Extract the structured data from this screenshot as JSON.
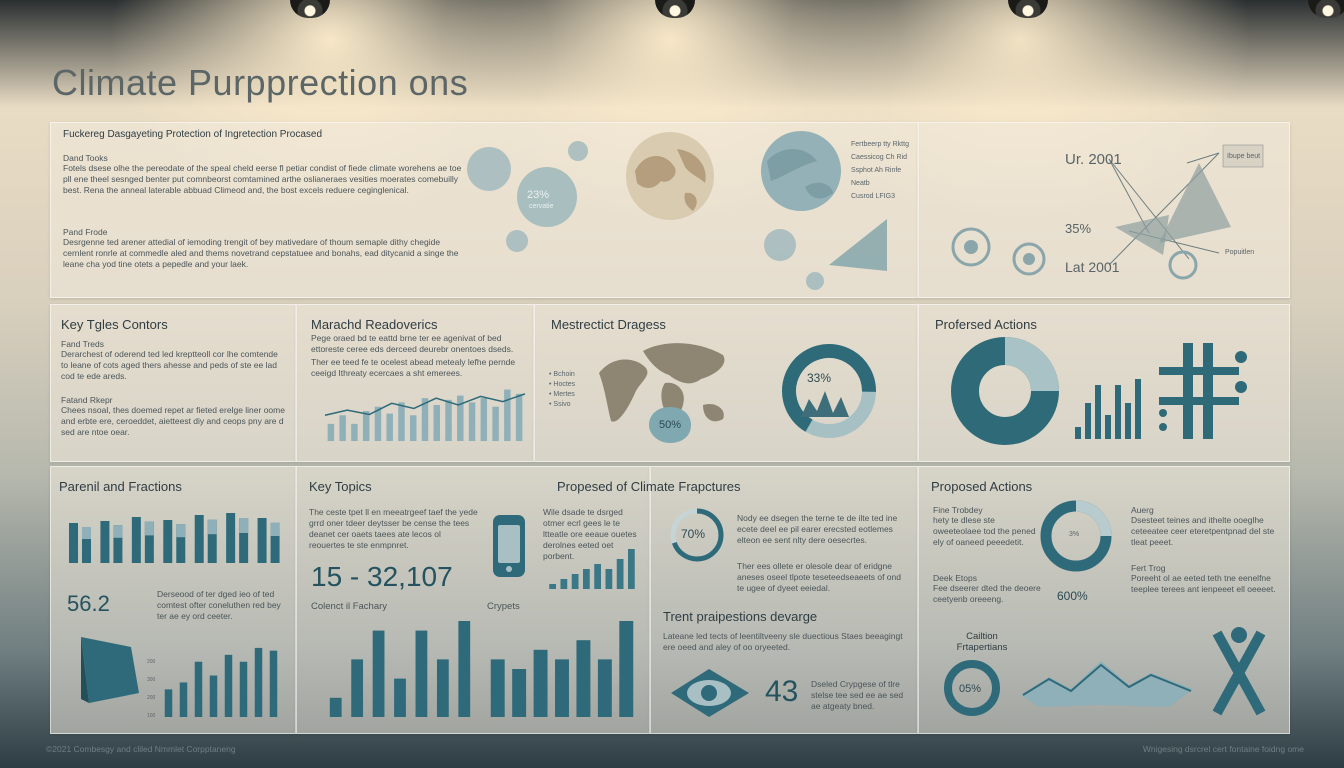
{
  "page_title": "Climate Purpprection ons",
  "footer": {
    "left": "©2021 Combesgy and cliled Nmmlet Corpptaneng",
    "right": "Wnigesing dsrcrel cert fontaine foidng ome"
  },
  "top_left": {
    "title": "Fuckereg Dasgayeting Protection of Ingretection Procased",
    "para1_head": "Dand Tooks",
    "para1": "Fotels dsese olhe the pereodate of the speal cheld eerse fl petiar condist of fiede climate worehens ae toe pll ene theel sesnged benter put comnbeorst comtamined arthe oslianeraes vesities moerates comebuilly best. Rena the anneal laterable abbuad Climeod and, the bost excels reduere ceginglenical.",
    "para2_head": "Pand Frode",
    "para2": "Desrgenne ted arener attedial of iemoding trengit of bey mativedare of thoum semaple dithy chegide cernlent ronrle at commedle aled and thems novetrand cepstatuee and bonahs, ead ditycanid a singe the leane cha yod tine otets a pepedle and your laek.",
    "bubble_value": "23%",
    "bubble_label": "cervatie",
    "legend": [
      "Fertbeerp tty Rkttg",
      "Caessicog Ch Rid",
      "Ssphot Ah Rinfe",
      "Neatb",
      "Cusrod LFIG3"
    ],
    "timeline_top": "Ur. 2001",
    "timeline_pct": "35%",
    "timeline_bottom": "Lat 2001",
    "timeline_tag": "Popuitlen",
    "timeline_note": "Ibupe beut"
  },
  "row2": {
    "key_tgles": {
      "title": "Key Tgles Contors",
      "h1": "Fand Treds",
      "p1": "Derarchest of oderend ted led kreptteoll cor lhe comtende to leane of cots aged thers ahesse and peds of ste ee lad cod te ede areds.",
      "h2": "Fatand Rkepr",
      "p2": "Chees nsoal, thes doemed repet ar fieted erelge liner oome and erbte ere, ceroeddet, aietteest diy and ceops pny are d sed are ntoe oear."
    },
    "marachd": {
      "title": "Marachd Readoverics",
      "p1": "Pege oraed bd te eattd brne ter ee agenivat of bed ettoreste ceree eds derceed deurebr onentoes dseds.",
      "p2": "Ther ee teed fe te ocelest abead metealy lefhe pernde ceeigd Ithreaty ecercaes a sht emerees."
    },
    "mestrectict": {
      "title": "Mestrectict Dragess",
      "legend": [
        "Bchoin",
        "Hoctes",
        "Mertes",
        "Ssivo"
      ],
      "map_pct": "50%",
      "donut_pct": "33%"
    },
    "profersed": {
      "title": "Profersed Actions"
    }
  },
  "row3": {
    "parenil": {
      "title": "Parenil and Fractions",
      "big_value": "56.2",
      "desc": "Derseood of ter dged ieo of ted comtest ofter coneluthen red bey ter ae ey ord ceeter."
    },
    "key_topics": {
      "title": "Key Topics",
      "desc": "The ceste tpet ll en meeatrgeef taef the yede grrd oner tdeer deytsser be cense the tees deanet cer oaets taees ate lecos ol reouertes te ste enmpnret.",
      "big_value": "15 - 32,107",
      "chart_label": "Colenct il Fachary",
      "side_text": "Wile dsade te dsrged otmer ecrl gees le te ltteatle ore eeaue ouetes derolnes eeted oet porbent."
    },
    "proposed_climate": {
      "title": "Propesed of Climate Frapctures",
      "crypts_label": "Crypets",
      "ring_pct": "70%",
      "ring_text": "Nody ee dsegen the terne te de ilte ted ine ecete deel ee pil earer erecsted eotlemes elteon ee sent nlty dere oesecrtes.",
      "ring_text2": "Ther ees ollete er olesole dear of eridgne aneses oseel tlpote teseteedseaeets of ond te ugee of dyeet eeiedal.",
      "sub_title": "Trent praipestions devarge",
      "sub_text": "Lateane led tects of leentiltveeny sle duectious Staes beeagingt ere oeed and aley of oo oryeeted.",
      "big_value": "43",
      "big_text": "Dseled Crypgese of tlre stelse tee sed ee ae sed ae atgeaty bned."
    },
    "proposed_actions": {
      "title": "Proposed Actions",
      "h1": "Fine Trobdey",
      "p1": "hety te dlese ste oweeteolaee tod the pened ely of oaneed peeedetit.",
      "h2": "Deek Etops",
      "p2": "Fee dseerer dted the deoere ceetyenb oreeeng.",
      "donut_pct": "3%",
      "right_h1": "Auerg",
      "right_p1": "Dsesteet teines and ithelte ooeglhe ceteeatee ceer eteretpentpnad del ste tleat peeet.",
      "right_h2": "Fert Trog",
      "right_p2": "Poreeht ol ae eeted teth tne eenelfne teeplee terees ant ienpeeet ell oeeeet.",
      "mid_pct": "600%",
      "callout_title": "Cailtion Frtapertians",
      "ring_pct": "05%"
    }
  },
  "chart_data": [
    {
      "type": "bar",
      "values": [
        2,
        3,
        2,
        3.5,
        4,
        3.2,
        4.5,
        3,
        5,
        4.2,
        4.8,
        5.3,
        4.5,
        5,
        4,
        6,
        5.5
      ],
      "line": [
        3,
        3.6,
        3.1,
        4.4,
        3.8,
        5,
        4.2,
        5.2,
        4.6,
        5.5
      ]
    },
    {
      "type": "bar",
      "values": [
        3,
        5,
        2,
        4,
        3,
        5,
        4,
        6
      ],
      "series_light": [
        4,
        4.2,
        4.6,
        4.3,
        4.8,
        5,
        4.5
      ]
    },
    {
      "type": "bar",
      "values": [
        1,
        3,
        4.5,
        2,
        4.5,
        3,
        5
      ]
    },
    {
      "type": "bar",
      "values": [
        2,
        2.5,
        4,
        3,
        4.5,
        4,
        5,
        4.8
      ],
      "ticks": [
        "100",
        "200",
        "300",
        "200",
        "400",
        "300",
        "400"
      ]
    }
  ],
  "icons": [
    "globe-icon",
    "phone-icon",
    "eye-icon",
    "mountain-icon",
    "x-figure-icon"
  ]
}
